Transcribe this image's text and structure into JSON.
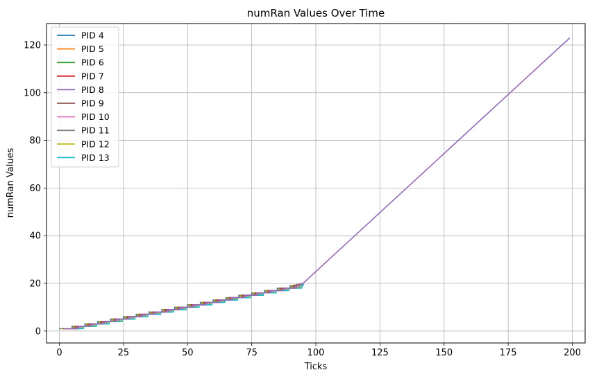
{
  "chart_data": {
    "type": "line",
    "title": "numRan Values Over Time",
    "xlabel": "Ticks",
    "ylabel": "numRan Values",
    "xlim": [
      -5,
      205
    ],
    "ylim": [
      -5,
      129
    ],
    "xticks": [
      0,
      25,
      50,
      75,
      100,
      125,
      150,
      175,
      200
    ],
    "yticks": [
      0,
      20,
      40,
      60,
      80,
      100,
      120
    ],
    "grid": true,
    "legend_position": "top-left",
    "series": [
      {
        "name": "PID 4",
        "color": "#1f77b4",
        "offset": 0
      },
      {
        "name": "PID 5",
        "color": "#ff7f0e",
        "offset": 0.5
      },
      {
        "name": "PID 6",
        "color": "#2ca02c",
        "offset": 1.0
      },
      {
        "name": "PID 7",
        "color": "#d62728",
        "offset": 1.5
      },
      {
        "name": "PID 8",
        "color": "#9467bd",
        "offset": 2.0
      },
      {
        "name": "PID 9",
        "color": "#8c564b",
        "offset": 2.5
      },
      {
        "name": "PID 10",
        "color": "#e377c2",
        "offset": 3.0
      },
      {
        "name": "PID 11",
        "color": "#7f7f7f",
        "offset": 3.5
      },
      {
        "name": "PID 12",
        "color": "#bcbd22",
        "offset": 4.0
      },
      {
        "name": "PID 13",
        "color": "#17becf",
        "offset": 4.5
      }
    ],
    "pattern": {
      "step_period": 5,
      "step_phase_end": 95,
      "value_at_start": 1,
      "value_at_step_end": 20,
      "final_x": 199,
      "final_value": 123,
      "linear_series": "PID 8"
    }
  }
}
